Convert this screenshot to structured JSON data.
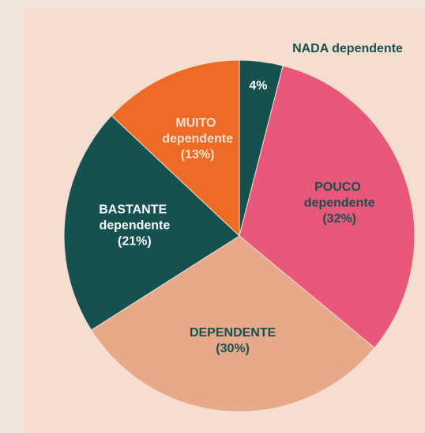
{
  "chart_data": {
    "type": "pie",
    "categories": [
      "NADA dependente",
      "POUCO dependente",
      "DEPENDENTE",
      "BASTANTE dependente",
      "MUITO dependente"
    ],
    "values": [
      4,
      32,
      30,
      21,
      13
    ],
    "value_labels": [
      "4%",
      "(32%)",
      "(30%)",
      "(21%)",
      "(13%)"
    ],
    "colors": [
      "#14514f",
      "#e9587a",
      "#e8a88a",
      "#14514f",
      "#ee6b26"
    ]
  }
}
